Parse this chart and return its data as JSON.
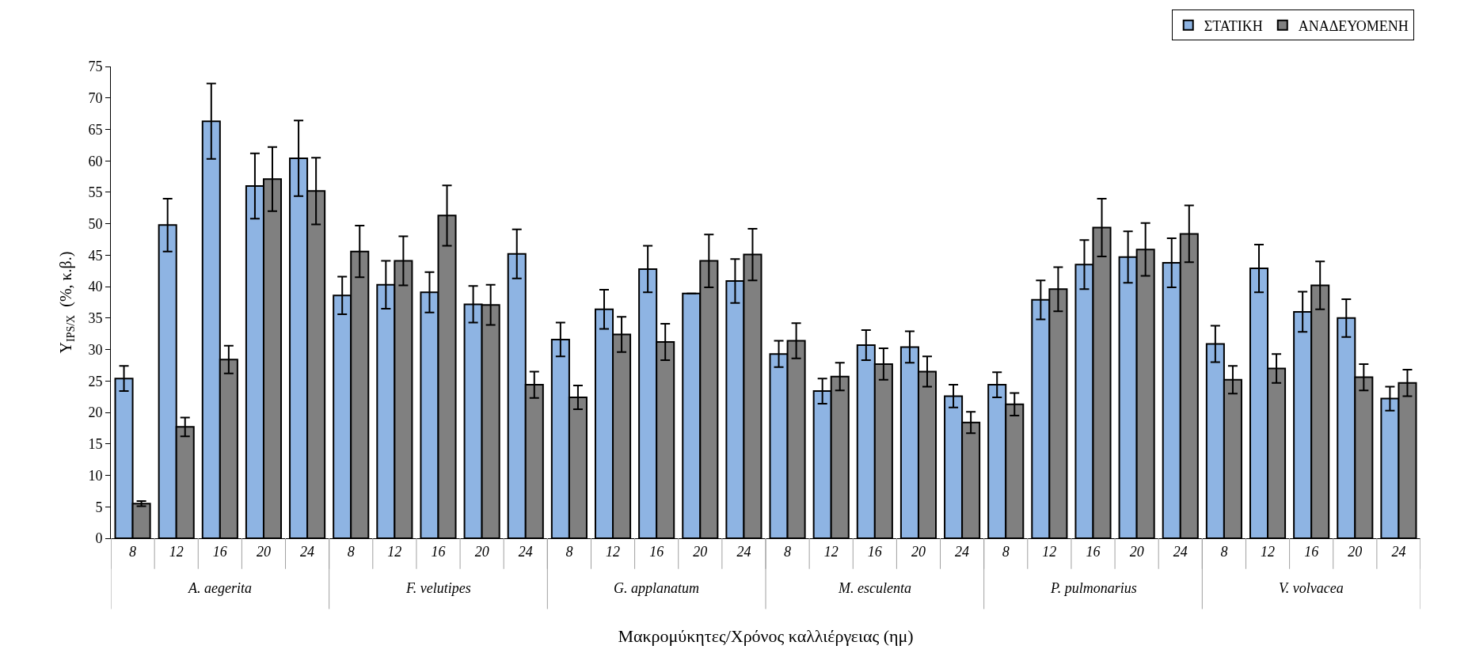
{
  "chart_data": {
    "type": "bar",
    "xlabel": "Μακρομύκητες/Χρόνος καλλιέργειας (ημ)",
    "ylabel": "Y$_{IPS/X}$  (%, κ.β.)",
    "categories": [
      "8",
      "12",
      "16",
      "20",
      "24",
      "8",
      "12",
      "16",
      "20",
      "24",
      "8",
      "12",
      "16",
      "20",
      "24",
      "8",
      "12",
      "16",
      "20",
      "24",
      "8",
      "12",
      "16",
      "20",
      "24",
      "8",
      "12",
      "16",
      "20",
      "24"
    ],
    "annotations": [
      "A. aegerita",
      "F. velutipes",
      "G. applanatum",
      "M. esculenta",
      "P. pulmonarius",
      "V. volvacea"
    ],
    "series": [
      {
        "name": "ΣΤΑΤΙΚΗ",
        "color": "#8eb4e3",
        "values": [
          25.4,
          49.8,
          66.3,
          56,
          60.4,
          38.6,
          40.3,
          39.1,
          37.2,
          45.2,
          31.6,
          36.4,
          42.8,
          38.9,
          40.9,
          29.3,
          23.4,
          30.7,
          30.4,
          22.6,
          24.4,
          37.9,
          43.5,
          44.7,
          43.8,
          30.9,
          42.9,
          36,
          35,
          22.2
        ],
        "errors": [
          2,
          4.2,
          6,
          5.2,
          6,
          3,
          3.8,
          3.2,
          2.9,
          3.9,
          2.7,
          3.1,
          3.7,
          null,
          3.5,
          2.1,
          2,
          2.4,
          2.5,
          1.8,
          2,
          3.1,
          3.9,
          4.1,
          3.9,
          2.9,
          3.8,
          3.2,
          3,
          1.9
        ]
      },
      {
        "name": "ΑΝΑΔΕΥΟΜΕΝΗ",
        "color": "#808080",
        "values": [
          5.5,
          17.7,
          28.4,
          57.1,
          55.2,
          45.6,
          44.1,
          51.3,
          37.1,
          24.4,
          22.4,
          32.4,
          31.2,
          44.1,
          45.1,
          31.4,
          25.7,
          27.7,
          26.5,
          18.4,
          21.3,
          39.6,
          49.4,
          45.9,
          48.4,
          25.2,
          27,
          40.2,
          25.6,
          24.7
        ],
        "errors": [
          0.4,
          1.5,
          2.2,
          5.1,
          5.3,
          4.1,
          3.9,
          4.8,
          3.2,
          2.1,
          1.9,
          2.8,
          2.9,
          4.2,
          4.1,
          2.8,
          2.2,
          2.5,
          2.4,
          1.7,
          1.8,
          3.5,
          4.6,
          4.2,
          4.5,
          2.2,
          2.3,
          3.8,
          2.1,
          2.1
        ]
      }
    ],
    "ylim": [
      0,
      75
    ],
    "yticks": [
      0,
      5,
      10,
      15,
      20,
      25,
      30,
      35,
      40,
      45,
      50,
      55,
      60,
      65,
      70,
      75
    ],
    "legend": "top right"
  }
}
